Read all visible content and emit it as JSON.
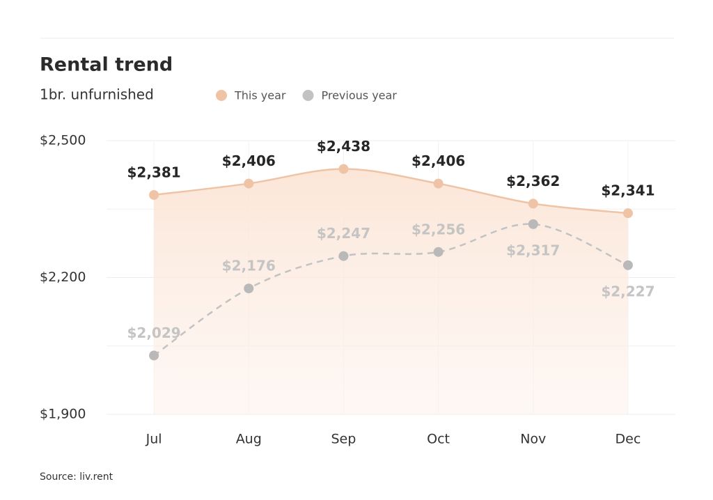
{
  "chart_data": {
    "type": "line",
    "title": "Rental trend",
    "subtitle": "1br. unfurnished",
    "source": "Source: liv.rent",
    "categories": [
      "Jul",
      "Aug",
      "Sep",
      "Oct",
      "Nov",
      "Dec"
    ],
    "series": [
      {
        "name": "This year",
        "color": "#efc3a5",
        "values": [
          2381,
          2406,
          2438,
          2406,
          2362,
          2341
        ],
        "value_labels": [
          "$2,381",
          "$2,406",
          "$2,438",
          "$2,406",
          "$2,362",
          "$2,341"
        ]
      },
      {
        "name": "Previous year",
        "color": "#c2c2c2",
        "dashed": true,
        "values": [
          2029,
          2176,
          2247,
          2256,
          2317,
          2227
        ],
        "value_labels": [
          "$2,029",
          "$2,176",
          "$2,247",
          "$2,256",
          "$2,317",
          "$2,227"
        ]
      }
    ],
    "ylim": [
      1900,
      2500
    ],
    "yticks": [
      {
        "value": 1900,
        "label": "$1,900"
      },
      {
        "value": 2200,
        "label": "$2,200"
      },
      {
        "value": 2500,
        "label": "$2,500"
      }
    ],
    "minor_yticks": [
      2050,
      2350
    ],
    "grid": true,
    "area": true
  }
}
